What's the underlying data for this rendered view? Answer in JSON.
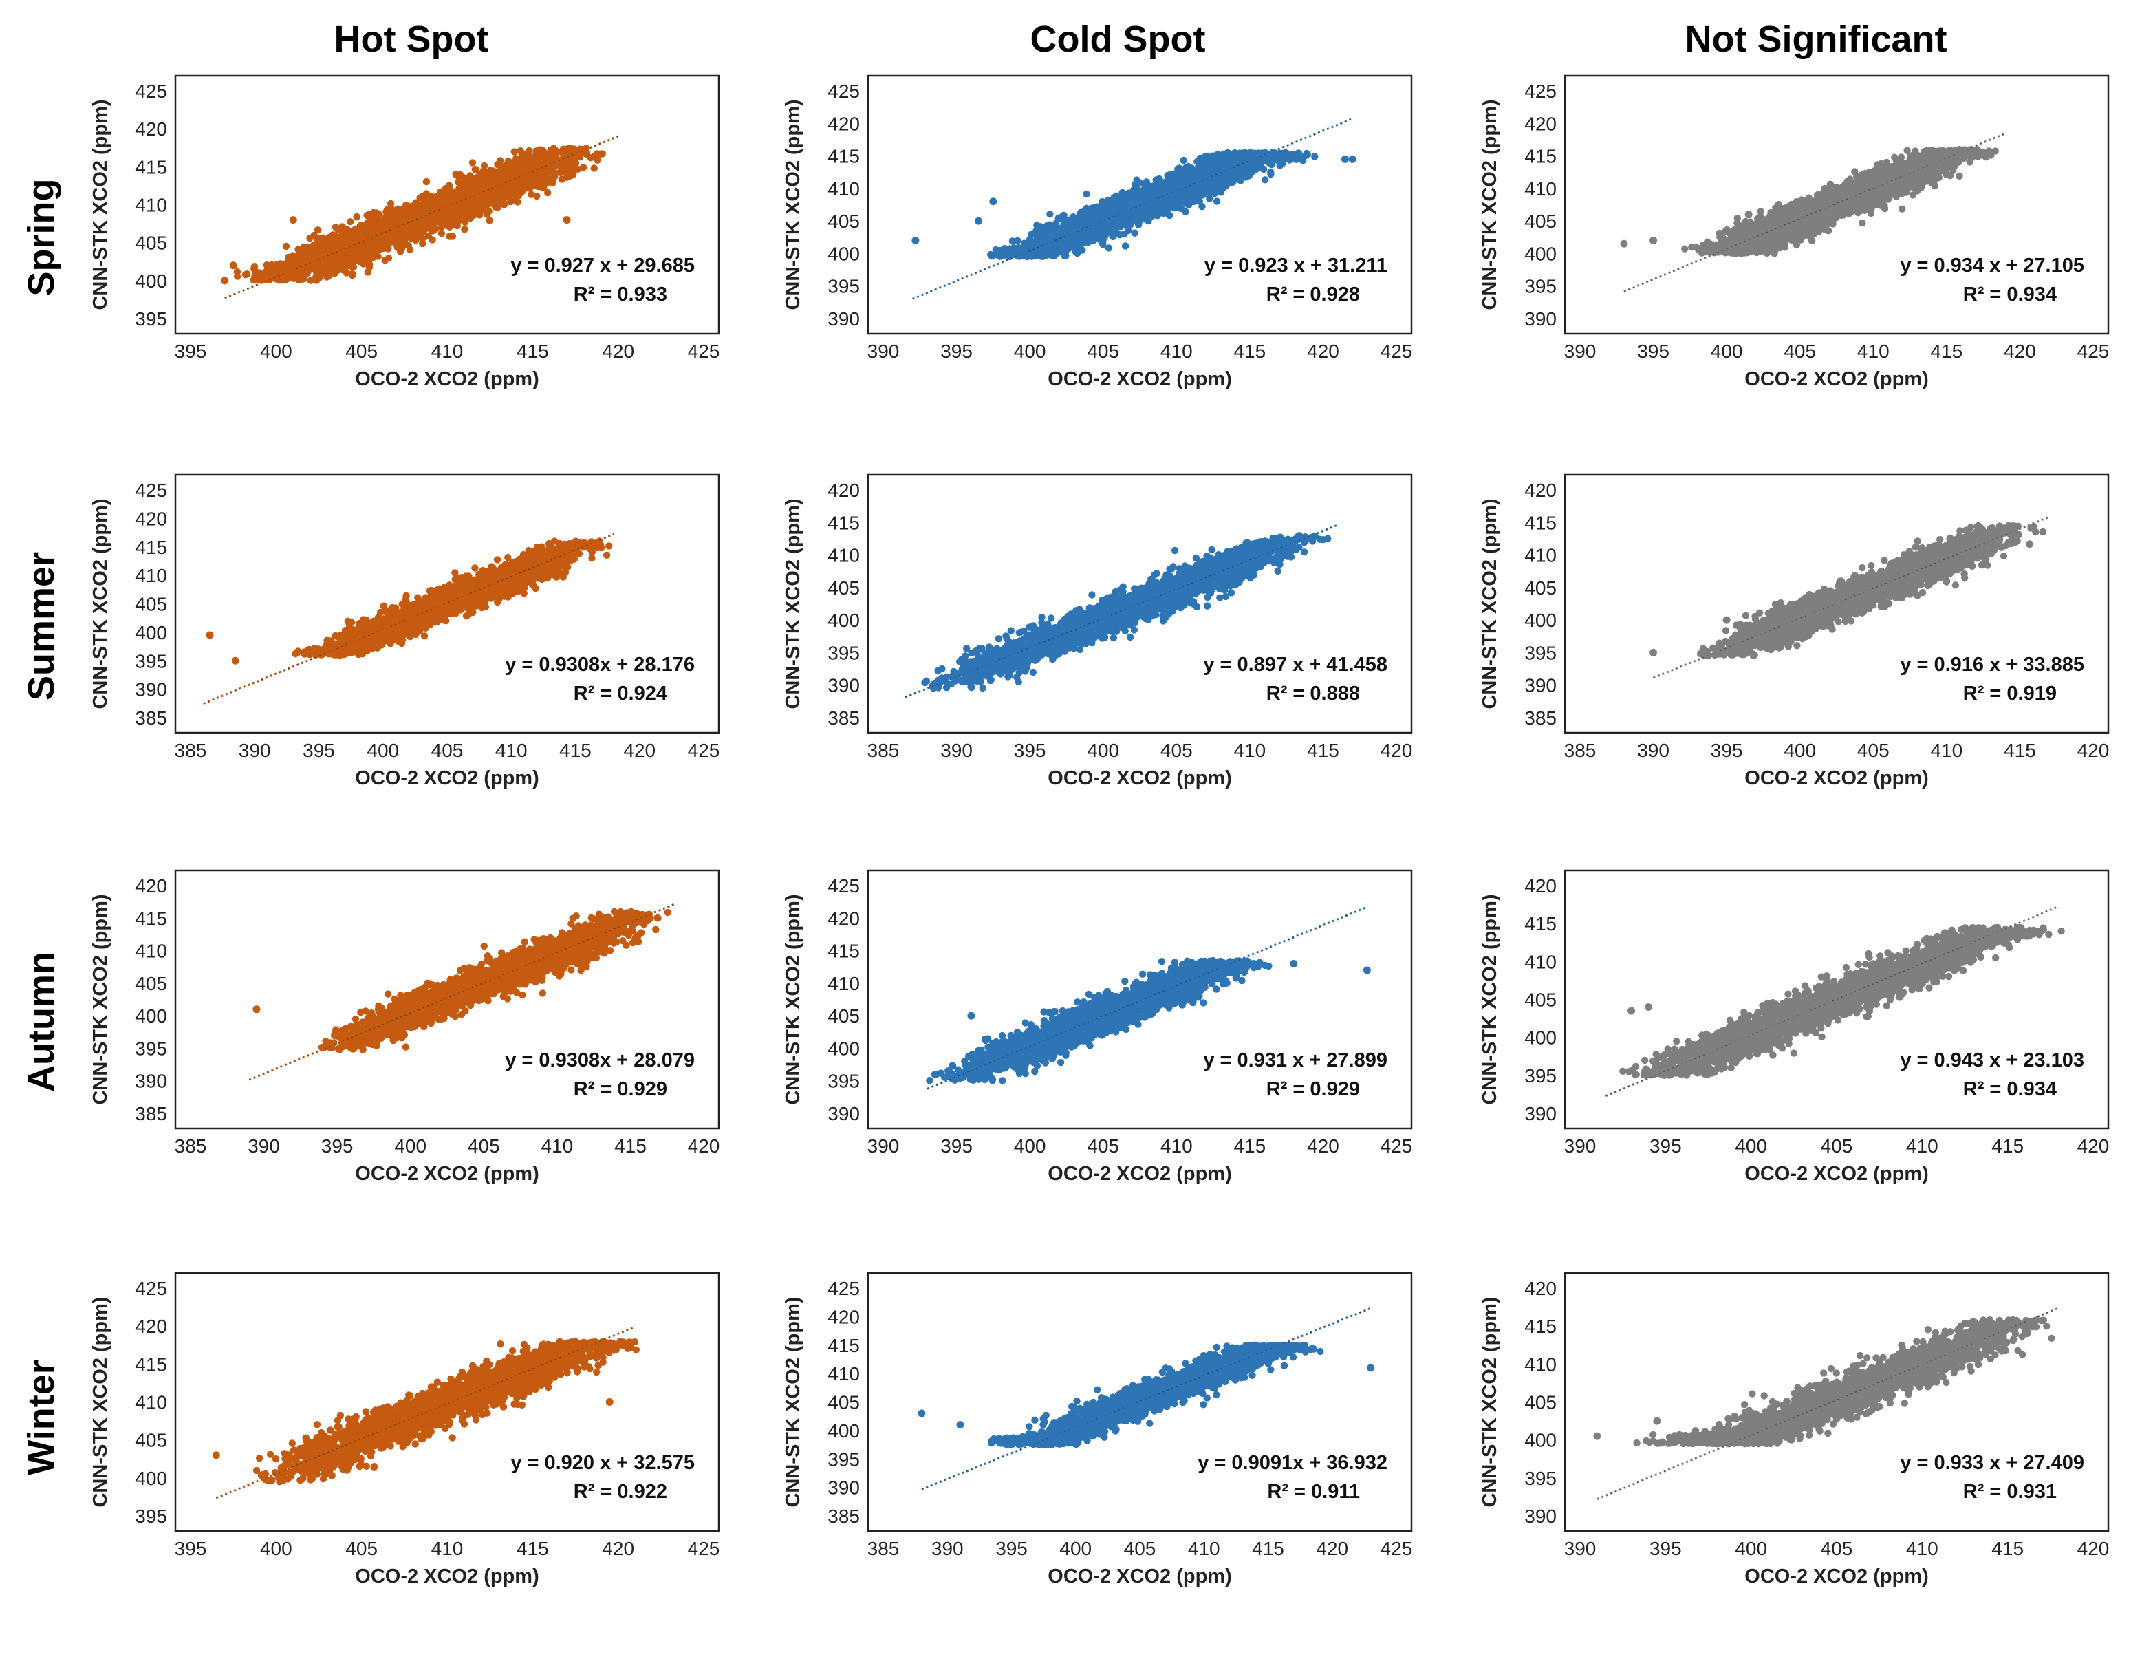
{
  "figure": {
    "column_titles": [
      "Hot Spot",
      "Cold Spot",
      "Not Significant"
    ],
    "row_titles": [
      "Spring",
      "Summer",
      "Autumn",
      "Winter"
    ]
  },
  "colors": {
    "hot": "#c55a11",
    "cold": "#2e75b6",
    "ns": "#7f7f7f"
  },
  "chart_data": [
    {
      "type": "scatter",
      "row": "Spring",
      "column": "Hot Spot",
      "color": "hot",
      "xlabel": "OCO-2 XCO2 (ppm)",
      "ylabel": "CNN-STK XCO2 (ppm)",
      "xlim": [
        395,
        425
      ],
      "ylim": [
        395,
        425
      ],
      "xticks": [
        395,
        400,
        405,
        410,
        415,
        420,
        425
      ],
      "yticks": [
        395,
        400,
        405,
        410,
        415,
        420,
        425
      ],
      "equation": "y = 0.927 x + 29.685",
      "r2": "R² = 0.933",
      "slope": 0.927,
      "intercept": 29.685,
      "trend_x": [
        397,
        420
      ],
      "x_range": [
        397,
        420
      ],
      "y_floor": 400,
      "y_cap": 417.5,
      "outliers": [
        [
          397,
          400
        ],
        [
          397.5,
          402
        ],
        [
          401,
          408
        ],
        [
          417,
          408
        ],
        [
          399,
          400.5
        ]
      ]
    },
    {
      "type": "scatter",
      "row": "Spring",
      "column": "Cold Spot",
      "color": "cold",
      "xlabel": "OCO-2 XCO2 (ppm)",
      "ylabel": "CNN-STK XCO2 (ppm)",
      "xlim": [
        390,
        425
      ],
      "ylim": [
        390,
        425
      ],
      "xticks": [
        390,
        395,
        400,
        405,
        410,
        415,
        420,
        425
      ],
      "yticks": [
        390,
        395,
        400,
        405,
        410,
        415,
        420,
        425
      ],
      "equation": "y = 0.923 x + 31.211",
      "r2": "R² = 0.928",
      "slope": 0.923,
      "intercept": 31.211,
      "trend_x": [
        392,
        422
      ],
      "x_range": [
        396,
        420
      ],
      "y_floor": 399.5,
      "y_cap": 415.5,
      "outliers": [
        [
          392.2,
          402
        ],
        [
          421.5,
          414.5
        ],
        [
          422,
          414.5
        ],
        [
          397.5,
          408
        ],
        [
          396.5,
          405
        ]
      ]
    },
    {
      "type": "scatter",
      "row": "Spring",
      "column": "Not Significant",
      "color": "ns",
      "xlabel": "OCO-2 XCO2 (ppm)",
      "ylabel": "CNN-STK XCO2 (ppm)",
      "xlim": [
        390,
        425
      ],
      "ylim": [
        390,
        425
      ],
      "xticks": [
        390,
        395,
        400,
        405,
        410,
        415,
        420,
        425
      ],
      "yticks": [
        390,
        395,
        400,
        405,
        410,
        415,
        420,
        425
      ],
      "equation": "y = 0.934 x + 27.105",
      "r2": "R² = 0.934",
      "slope": 0.934,
      "intercept": 27.105,
      "trend_x": [
        393,
        419
      ],
      "x_range": [
        397,
        419
      ],
      "y_floor": 400,
      "y_cap": 416,
      "outliers": [
        [
          393,
          401.5
        ],
        [
          395,
          402
        ],
        [
          401.5,
          406
        ]
      ]
    },
    {
      "type": "scatter",
      "row": "Summer",
      "column": "Hot Spot",
      "color": "hot",
      "xlabel": "OCO-2 XCO2 (ppm)",
      "ylabel": "CNN-STK XCO2 (ppm)",
      "xlim": [
        385,
        425
      ],
      "ylim": [
        385,
        425
      ],
      "xticks": [
        385,
        390,
        395,
        400,
        405,
        410,
        415,
        420,
        425
      ],
      "yticks": [
        385,
        390,
        395,
        400,
        405,
        410,
        415,
        420,
        425
      ],
      "equation": "y = 0.9308x + 28.176",
      "r2": "R² = 0.924",
      "slope": 0.9308,
      "intercept": 28.176,
      "trend_x": [
        386,
        418
      ],
      "x_range": [
        392.5,
        418.5
      ],
      "y_floor": 396,
      "y_cap": 416,
      "outliers": [
        [
          386.5,
          399.5
        ],
        [
          388.5,
          395
        ]
      ]
    },
    {
      "type": "scatter",
      "row": "Summer",
      "column": "Cold Spot",
      "color": "cold",
      "xlabel": "OCO-2 XCO2 (ppm)",
      "ylabel": "CNN-STK XCO2 (ppm)",
      "xlim": [
        385,
        420
      ],
      "ylim": [
        385,
        420
      ],
      "xticks": [
        385,
        390,
        395,
        400,
        405,
        410,
        415,
        420
      ],
      "yticks": [
        385,
        390,
        395,
        400,
        405,
        410,
        415,
        420
      ],
      "equation": "y = 0.897 x + 41.458",
      "r2": "R² = 0.888",
      "slope": 0.897,
      "intercept": 41.458,
      "trend_x": [
        386.5,
        416
      ],
      "x_range": [
        386.5,
        416.5
      ],
      "y_floor": 389.5,
      "y_cap": 413,
      "outliers": []
    },
    {
      "type": "scatter",
      "row": "Summer",
      "column": "Not Significant",
      "color": "ns",
      "xlabel": "OCO-2 XCO2 (ppm)",
      "ylabel": "CNN-STK XCO2 (ppm)",
      "xlim": [
        385,
        420
      ],
      "ylim": [
        385,
        420
      ],
      "xticks": [
        385,
        390,
        395,
        400,
        405,
        410,
        415,
        420
      ],
      "yticks": [
        385,
        390,
        395,
        400,
        405,
        410,
        415,
        420
      ],
      "equation": "y = 0.916 x + 33.885",
      "r2": "R² = 0.919",
      "slope": 0.916,
      "intercept": 33.885,
      "trend_x": [
        390,
        417
      ],
      "x_range": [
        392.5,
        417
      ],
      "y_floor": 394.5,
      "y_cap": 414.5,
      "outliers": [
        [
          390,
          395
        ],
        [
          395,
          400
        ]
      ]
    },
    {
      "type": "scatter",
      "row": "Autumn",
      "column": "Hot Spot",
      "color": "hot",
      "xlabel": "OCO-2 XCO2 (ppm)",
      "ylabel": "CNN-STK XCO2 (ppm)",
      "xlim": [
        385,
        420
      ],
      "ylim": [
        385,
        420
      ],
      "xticks": [
        385,
        390,
        395,
        400,
        405,
        410,
        415,
        420
      ],
      "yticks": [
        385,
        390,
        395,
        400,
        405,
        410,
        415,
        420
      ],
      "equation": "y = 0.9308x + 28.079",
      "r2": "R² = 0.929",
      "slope": 0.9308,
      "intercept": 28.079,
      "trend_x": [
        389,
        418
      ],
      "x_range": [
        393,
        418.5
      ],
      "y_floor": 394.5,
      "y_cap": 416,
      "outliers": [
        [
          389.5,
          401
        ]
      ]
    },
    {
      "type": "scatter",
      "row": "Autumn",
      "column": "Cold Spot",
      "color": "cold",
      "xlabel": "OCO-2 XCO2 (ppm)",
      "ylabel": "CNN-STK XCO2 (ppm)",
      "xlim": [
        390,
        425
      ],
      "ylim": [
        390,
        425
      ],
      "xticks": [
        390,
        395,
        400,
        405,
        410,
        415,
        420,
        425
      ],
      "yticks": [
        390,
        395,
        400,
        405,
        410,
        415,
        420,
        425
      ],
      "equation": "y = 0.931 x + 27.899",
      "r2": "R² = 0.929",
      "slope": 0.931,
      "intercept": 27.899,
      "trend_x": [
        393,
        423
      ],
      "x_range": [
        393,
        417
      ],
      "y_floor": 395,
      "y_cap": 413.5,
      "outliers": [
        [
          423,
          412
        ],
        [
          418,
          413
        ],
        [
          396,
          405
        ]
      ]
    },
    {
      "type": "scatter",
      "row": "Autumn",
      "column": "Not Significant",
      "color": "ns",
      "xlabel": "OCO-2 XCO2 (ppm)",
      "ylabel": "CNN-STK XCO2 (ppm)",
      "xlim": [
        390,
        420
      ],
      "ylim": [
        390,
        420
      ],
      "xticks": [
        390,
        395,
        400,
        405,
        410,
        415,
        420
      ],
      "yticks": [
        390,
        395,
        400,
        405,
        410,
        415,
        420
      ],
      "equation": "y = 0.943 x + 23.103",
      "r2": "R² = 0.934",
      "slope": 0.943,
      "intercept": 23.103,
      "trend_x": [
        391.5,
        418
      ],
      "x_range": [
        391.5,
        418.5
      ],
      "y_floor": 395,
      "y_cap": 414.5,
      "outliers": [
        [
          393,
          403.5
        ],
        [
          394,
          404
        ]
      ]
    },
    {
      "type": "scatter",
      "row": "Winter",
      "column": "Hot Spot",
      "color": "hot",
      "xlabel": "OCO-2 XCO2 (ppm)",
      "ylabel": "CNN-STK XCO2 (ppm)",
      "xlim": [
        395,
        425
      ],
      "ylim": [
        395,
        425
      ],
      "xticks": [
        395,
        400,
        405,
        410,
        415,
        420,
        425
      ],
      "yticks": [
        395,
        400,
        405,
        410,
        415,
        420,
        425
      ],
      "equation": "y = 0.920 x + 32.575",
      "r2": "R² = 0.922",
      "slope": 0.92,
      "intercept": 32.575,
      "trend_x": [
        396.5,
        421
      ],
      "x_range": [
        398,
        422
      ],
      "y_floor": 399.5,
      "y_cap": 418,
      "outliers": [
        [
          396.5,
          403
        ],
        [
          419.5,
          410
        ]
      ]
    },
    {
      "type": "scatter",
      "row": "Winter",
      "column": "Cold Spot",
      "color": "cold",
      "xlabel": "OCO-2 XCO2 (ppm)",
      "ylabel": "CNN-STK XCO2 (ppm)",
      "xlim": [
        385,
        425
      ],
      "ylim": [
        385,
        425
      ],
      "xticks": [
        385,
        390,
        395,
        400,
        405,
        410,
        415,
        420,
        425
      ],
      "yticks": [
        385,
        390,
        395,
        400,
        405,
        410,
        415,
        420,
        425
      ],
      "equation": "y = 0.9091x + 36.932",
      "r2": "R² = 0.911",
      "slope": 0.9091,
      "intercept": 36.932,
      "trend_x": [
        388,
        423
      ],
      "x_range": [
        392,
        420
      ],
      "y_floor": 397.5,
      "y_cap": 415,
      "outliers": [
        [
          388,
          403
        ],
        [
          423,
          411
        ],
        [
          391,
          401
        ]
      ]
    },
    {
      "type": "scatter",
      "row": "Winter",
      "column": "Not Significant",
      "color": "ns",
      "xlabel": "OCO-2 XCO2 (ppm)",
      "ylabel": "CNN-STK XCO2 (ppm)",
      "xlim": [
        390,
        420
      ],
      "ylim": [
        390,
        420
      ],
      "xticks": [
        390,
        395,
        400,
        405,
        410,
        415,
        420
      ],
      "yticks": [
        390,
        395,
        400,
        405,
        410,
        415,
        420
      ],
      "equation": "y = 0.933 x + 27.409",
      "r2": "R² = 0.931",
      "slope": 0.933,
      "intercept": 27.409,
      "trend_x": [
        391,
        418
      ],
      "x_range": [
        393,
        418.5
      ],
      "y_floor": 399.5,
      "y_cap": 416,
      "outliers": [
        [
          391,
          400.5
        ],
        [
          394.5,
          402.5
        ]
      ]
    }
  ]
}
